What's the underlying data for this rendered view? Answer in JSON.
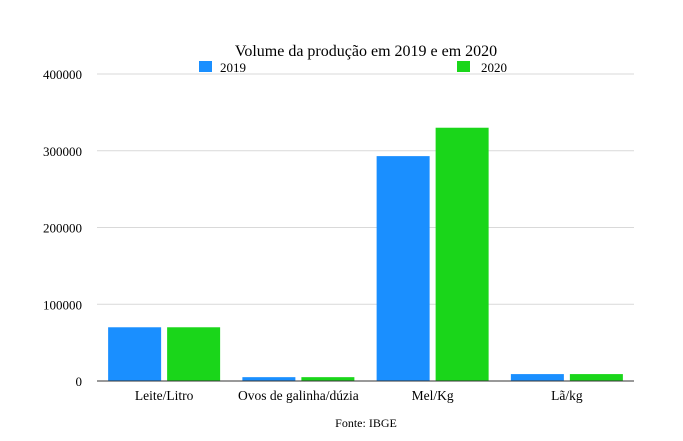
{
  "chart_data": {
    "type": "bar",
    "title": "Volume da produção em 2019 e em 2020",
    "source": "Fonte: IBGE",
    "xlabel": "",
    "ylabel": "",
    "categories": [
      "Leite/Litro",
      "Ovos de galinha/dúzia",
      "Mel/Kg",
      "Lã/kg"
    ],
    "series": [
      {
        "name": "2019",
        "color": "#1a8fff",
        "values": [
          70000,
          5000,
          293000,
          9000
        ]
      },
      {
        "name": "2020",
        "color": "#1ad61a",
        "values": [
          70000,
          5000,
          330000,
          9000
        ]
      }
    ],
    "ylim": [
      0,
      400000
    ],
    "yticks": [
      "0",
      "100000",
      "200000",
      "300000",
      "400000"
    ],
    "grid": true,
    "legend_position": "top"
  }
}
